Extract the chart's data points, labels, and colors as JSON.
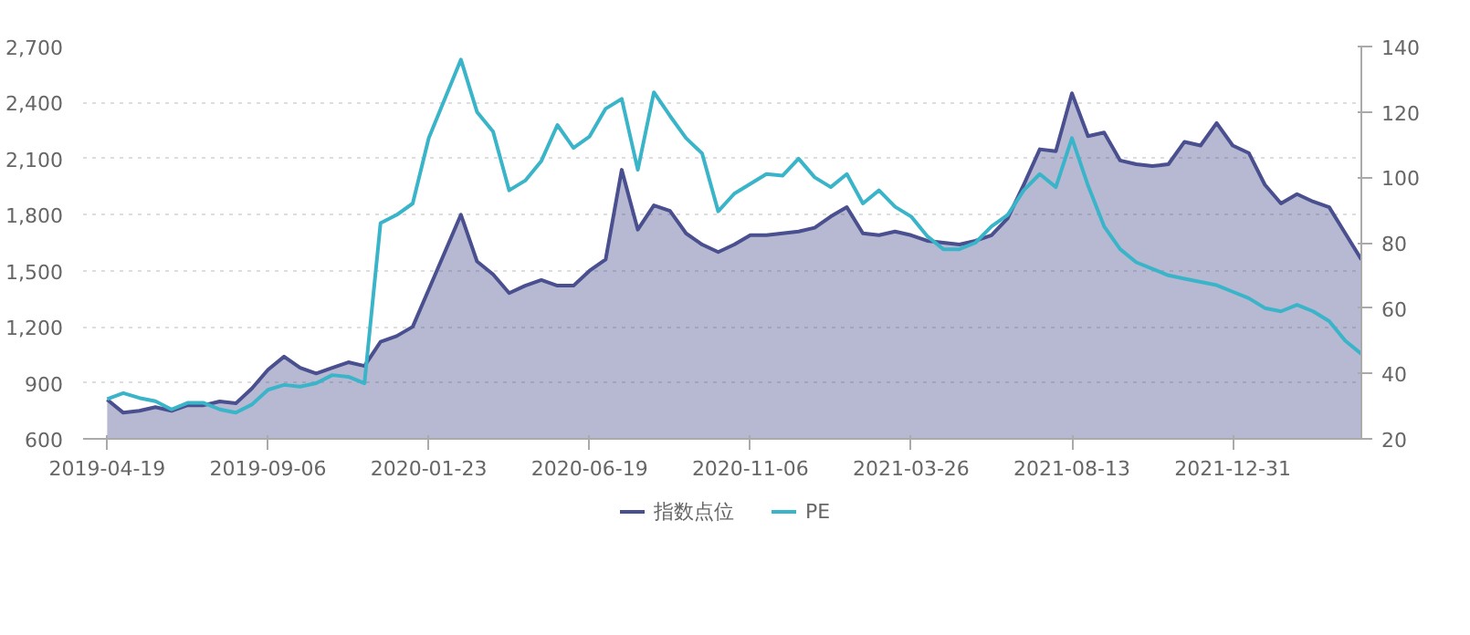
{
  "chart_data": {
    "type": "line",
    "categories": [
      "2019-04-19",
      null,
      null,
      null,
      null,
      null,
      null,
      null,
      null,
      null,
      "2019-09-06",
      null,
      null,
      null,
      null,
      null,
      null,
      null,
      null,
      null,
      "2020-01-23",
      null,
      null,
      null,
      null,
      null,
      null,
      null,
      null,
      null,
      "2020-06-19",
      null,
      null,
      null,
      null,
      null,
      null,
      null,
      null,
      null,
      "2020-11-06",
      null,
      null,
      null,
      null,
      null,
      null,
      null,
      null,
      null,
      "2021-03-26",
      null,
      null,
      null,
      null,
      null,
      null,
      null,
      null,
      null,
      "2021-08-13",
      null,
      null,
      null,
      null,
      null,
      null,
      null,
      null,
      null,
      "2021-12-31",
      null,
      null,
      null,
      null,
      null,
      null,
      null,
      null
    ],
    "ylim": [
      600,
      2700
    ],
    "yticks": [
      600,
      900,
      {
        "value": 1200,
        "label": "1,200"
      },
      {
        "value": 1500,
        "label": "1,500"
      },
      {
        "value": 1800,
        "label": "1,800"
      },
      {
        "value": 2100,
        "label": "2,100"
      },
      {
        "value": 2400,
        "label": "2,400"
      },
      {
        "value": 2700,
        "label": "2,700"
      }
    ],
    "y2lim": [
      20,
      140
    ],
    "y2ticks": [
      20,
      40,
      60,
      80,
      100,
      120,
      140
    ],
    "grid": "y",
    "legend": "bottom",
    "marker": "none",
    "line_style": "solid",
    "series": [
      {
        "name": "指数点位",
        "type": "area",
        "color": "#4a4f8f",
        "values": [
          810,
          740,
          750,
          770,
          750,
          780,
          780,
          800,
          790,
          870,
          970,
          1040,
          980,
          950,
          980,
          1010,
          990,
          1120,
          1150,
          1200,
          1400,
          1600,
          1800,
          1550,
          1480,
          1380,
          1420,
          1450,
          1420,
          1420,
          1500,
          1560,
          2040,
          1720,
          1850,
          1820,
          1700,
          1640,
          1600,
          1640,
          1690,
          1690,
          1700,
          1710,
          1730,
          1790,
          1840,
          1700,
          1690,
          1710,
          1690,
          1660,
          1650,
          1640,
          1660,
          1690,
          1780,
          1960,
          2150,
          2140,
          2450,
          2220,
          2240,
          2090,
          2070,
          2060,
          2070,
          2190,
          2170,
          2290,
          2170,
          2130,
          1960,
          1860,
          1910,
          1870,
          1840,
          1700,
          1560
        ]
      },
      {
        "name": "PE",
        "axis": "y2",
        "color": "#3ab4c8",
        "values": [
          32.2,
          34,
          32.5,
          31.5,
          29,
          31,
          31,
          29,
          28,
          30.5,
          35,
          36.5,
          36,
          37,
          39.5,
          39,
          37,
          86,
          88.5,
          92,
          112,
          124,
          136,
          120,
          114,
          96,
          99,
          105,
          116,
          109,
          112.5,
          121,
          124,
          102.3,
          126,
          118.8,
          112,
          107.3,
          89.6,
          95,
          98,
          101,
          100.5,
          105.7,
          100,
          97,
          101,
          92,
          96,
          91,
          88,
          82,
          78,
          78,
          80,
          85,
          88.5,
          96,
          101,
          97,
          112,
          97.5,
          85,
          78,
          74,
          72,
          70,
          69,
          68,
          67,
          65,
          63,
          60,
          59,
          61,
          59,
          56,
          50,
          46
        ]
      }
    ]
  }
}
